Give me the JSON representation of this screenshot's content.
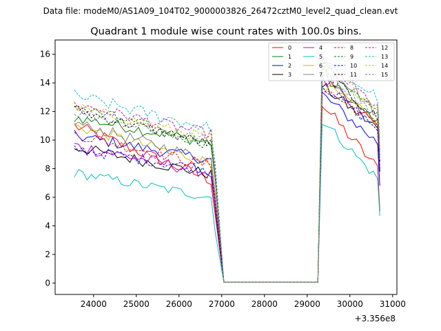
{
  "chart_data": {
    "type": "line",
    "suptitle": "Data file: modeM0/AS1A09_104T02_9000003826_26472cztM0_level2_quad_clean.evt",
    "title": "Quadrant 1 module wise count rates with 100.0s bins.",
    "xlabel": "",
    "ylabel": "",
    "x_offset_label": "+3.356e8",
    "xlim": [
      23100,
      31100
    ],
    "ylim": [
      -0.8,
      17.0
    ],
    "x_ticks": [
      24000,
      25000,
      26000,
      27000,
      28000,
      29000,
      30000,
      31000
    ],
    "y_ticks": [
      0,
      2,
      4,
      6,
      8,
      10,
      12,
      14,
      16
    ],
    "x_tick_labels": [
      "24000",
      "25000",
      "26000",
      "27000",
      "28000",
      "29000",
      "30000",
      "31000"
    ],
    "y_tick_labels": [
      "0",
      "2",
      "4",
      "6",
      "8",
      "10",
      "12",
      "14",
      "16"
    ],
    "segment1": {
      "t_start": 23550,
      "t_end": 26750,
      "step": 100,
      "drop_to": 27050
    },
    "segment2": {
      "t_rise_from": 29250,
      "t_start": 29350,
      "t_end": 30650,
      "step": 100,
      "tail": 30700
    },
    "legend_position": "upper-right",
    "series": [
      {
        "name": "0",
        "color": "#ff0000",
        "dash": false,
        "seg1": [
          11.0,
          7.2
        ],
        "seg2": [
          12.5,
          8.0
        ],
        "noise": 0.45
      },
      {
        "name": "1",
        "color": "#008000",
        "dash": false,
        "seg1": [
          11.6,
          9.8
        ],
        "seg2": [
          14.5,
          11.2
        ],
        "noise": 0.4
      },
      {
        "name": "2",
        "color": "#0000ff",
        "dash": false,
        "seg1": [
          10.3,
          8.6
        ],
        "seg2": [
          13.2,
          9.8
        ],
        "noise": 0.4
      },
      {
        "name": "3",
        "color": "#000000",
        "dash": false,
        "seg1": [
          9.5,
          7.6
        ],
        "seg2": [
          13.8,
          10.8
        ],
        "noise": 0.4
      },
      {
        "name": "4",
        "color": "#bf00bf",
        "dash": false,
        "seg1": [
          9.6,
          7.7
        ],
        "seg2": [
          14.2,
          11.0
        ],
        "noise": 0.45
      },
      {
        "name": "5",
        "color": "#00bfbf",
        "dash": false,
        "seg1": [
          7.7,
          6.0
        ],
        "seg2": [
          11.4,
          7.3
        ],
        "noise": 0.35
      },
      {
        "name": "6",
        "color": "#bfbf00",
        "dash": false,
        "seg1": [
          11.0,
          8.4
        ],
        "seg2": [
          14.0,
          11.2
        ],
        "noise": 0.4
      },
      {
        "name": "7",
        "color": "#808080",
        "dash": false,
        "seg1": [
          11.2,
          8.6
        ],
        "seg2": [
          15.8,
          11.8
        ],
        "noise": 0.4
      },
      {
        "name": "8",
        "color": "#ff0000",
        "dash": true,
        "seg1": [
          10.4,
          8.2
        ],
        "seg2": [
          13.7,
          11.0
        ],
        "noise": 0.4
      },
      {
        "name": "9",
        "color": "#008000",
        "dash": true,
        "seg1": [
          12.4,
          9.7
        ],
        "seg2": [
          15.4,
          11.8
        ],
        "noise": 0.4
      },
      {
        "name": "10",
        "color": "#0000ff",
        "dash": true,
        "seg1": [
          9.4,
          7.9
        ],
        "seg2": [
          13.9,
          10.8
        ],
        "noise": 0.4
      },
      {
        "name": "11",
        "color": "#000000",
        "dash": true,
        "seg1": [
          12.1,
          9.7
        ],
        "seg2": [
          14.8,
          11.5
        ],
        "noise": 0.4
      },
      {
        "name": "12",
        "color": "#bf00bf",
        "dash": true,
        "seg1": [
          12.5,
          10.4
        ],
        "seg2": [
          15.6,
          12.3
        ],
        "noise": 0.4
      },
      {
        "name": "13",
        "color": "#00bfbf",
        "dash": true,
        "seg1": [
          13.1,
          10.8
        ],
        "seg2": [
          15.6,
          13.0
        ],
        "noise": 0.45
      },
      {
        "name": "14",
        "color": "#bfbf00",
        "dash": true,
        "seg1": [
          12.3,
          10.1
        ],
        "seg2": [
          15.3,
          12.3
        ],
        "noise": 0.4
      },
      {
        "name": "15",
        "color": "#808080",
        "dash": true,
        "seg1": [
          12.0,
          9.9
        ],
        "seg2": [
          15.0,
          11.7
        ],
        "noise": 0.4
      }
    ]
  }
}
